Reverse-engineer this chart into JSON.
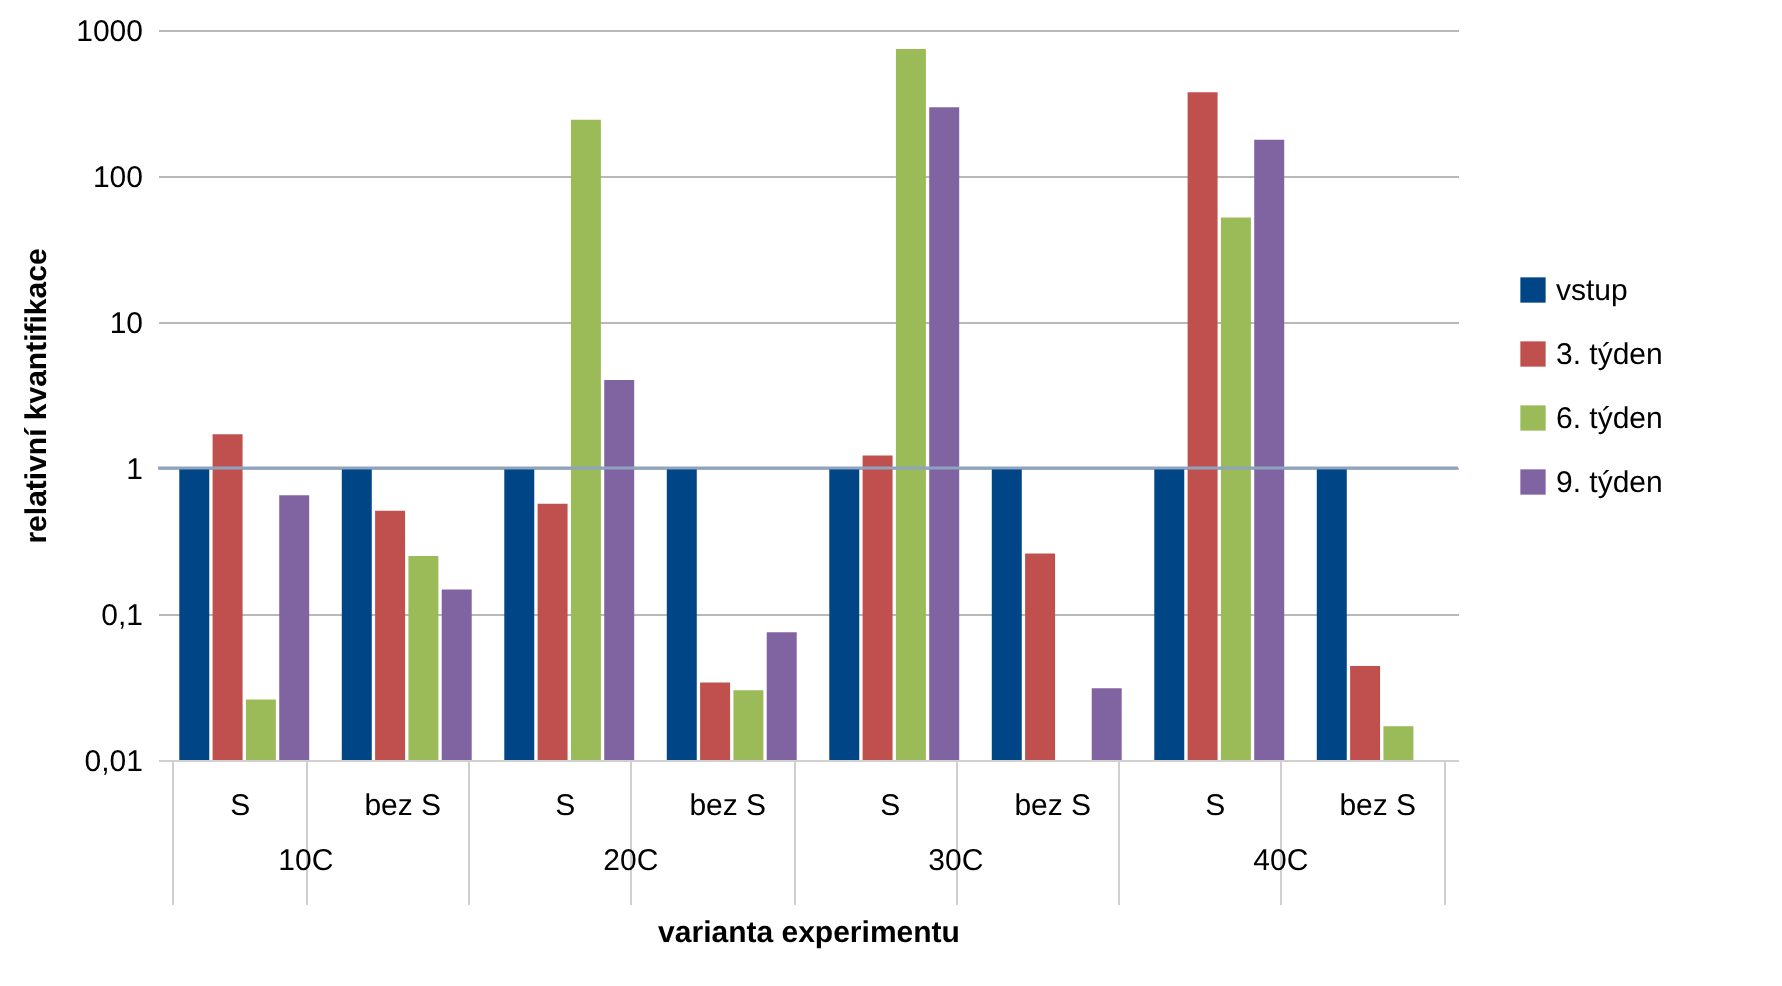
{
  "chart_data": {
    "type": "bar",
    "xlabel": "varianta experimentu",
    "ylabel": "relativní kvantifikace",
    "categories": [
      "S",
      "bez S",
      "S",
      "bez S",
      "S",
      "bez S",
      "S",
      "bez S"
    ],
    "annotations": [
      "10C",
      "20C",
      "30C",
      "40C"
    ],
    "series": [
      {
        "name": "vstup",
        "color": "#004586",
        "values": [
          1,
          1,
          1,
          1,
          1,
          1,
          1,
          1
        ]
      },
      {
        "name": "3. týden",
        "color": "#c0504d",
        "values": [
          1.7,
          0.51,
          0.57,
          0.034,
          1.22,
          0.26,
          375,
          0.044
        ]
      },
      {
        "name": "6. týden",
        "color": "#9bbb59",
        "values": [
          0.026,
          0.25,
          243,
          0.03,
          741,
          null,
          52,
          0.017
        ]
      },
      {
        "name": "9. týden",
        "color": "#8064a2",
        "values": [
          0.65,
          0.147,
          4,
          0.075,
          296,
          0.031,
          177,
          null
        ]
      }
    ],
    "log": "y",
    "ylim": [
      0.01,
      1000
    ],
    "yticks": [
      {
        "value": 0.01,
        "label": "0,01"
      },
      {
        "value": 0.1,
        "label": "0,1"
      },
      1,
      10,
      100,
      1000
    ],
    "ref_lines": [
      {
        "axis": "y",
        "value": 1,
        "color": "#8ea3bf"
      }
    ],
    "grid": "y",
    "legend": "right"
  }
}
